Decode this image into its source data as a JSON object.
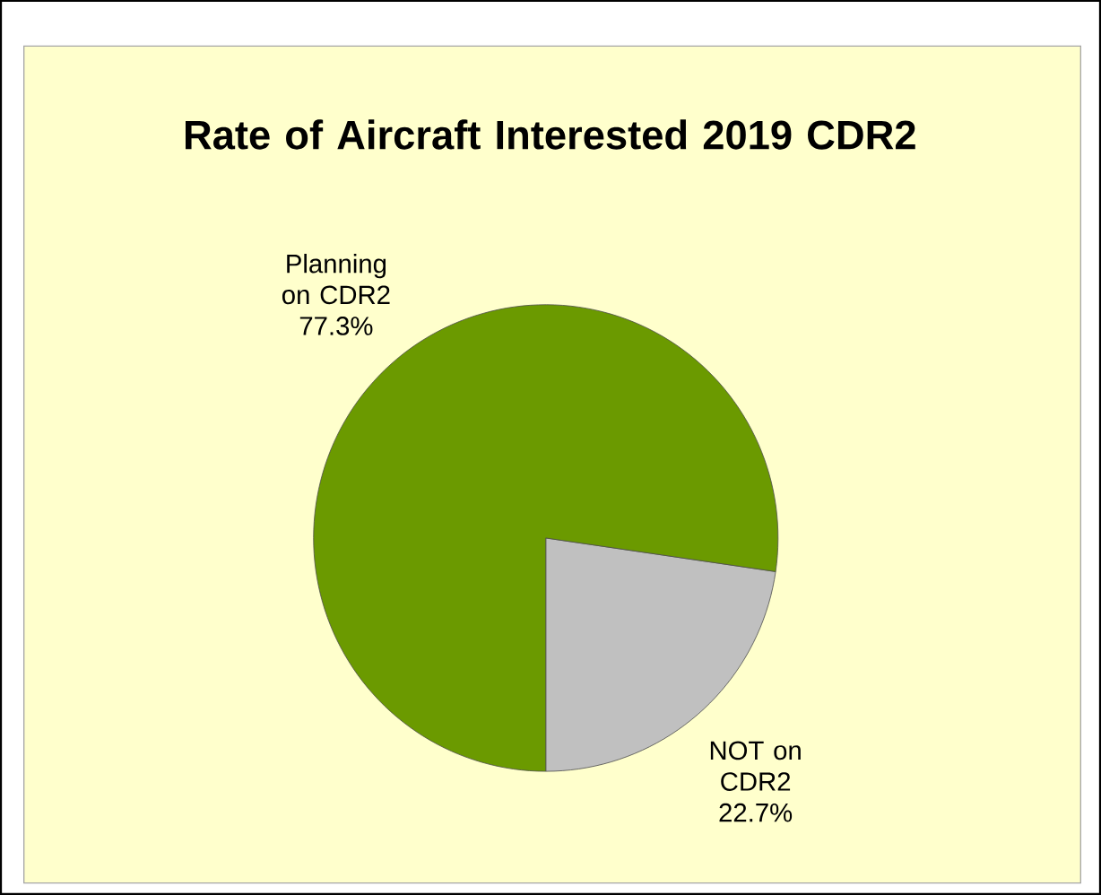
{
  "chart_data": {
    "type": "pie",
    "title": "Rate of Aircraft Interested 2019 CDR2",
    "categories": [
      "Planning on CDR2",
      "NOT on CDR2"
    ],
    "values": [
      77.3,
      22.7
    ],
    "value_labels": [
      "77.3%",
      "22.7%"
    ],
    "colors": [
      "#6b9a00",
      "#c0c0c0"
    ]
  }
}
